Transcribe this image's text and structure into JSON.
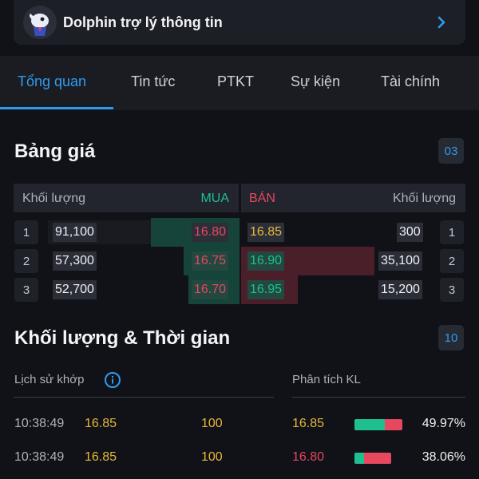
{
  "assistant": {
    "title": "Dolphin trợ lý thông tin"
  },
  "tabs": [
    "Tổng quan",
    "Tin tức",
    "PTKT",
    "Sự kiện",
    "Tài chính"
  ],
  "order_book": {
    "title": "Bảng giá",
    "badge": "03",
    "headers": {
      "left_volume": "Khối lượng",
      "buy": "MUA",
      "sell": "BÁN",
      "right_volume": "Khối lượng"
    },
    "rows": [
      {
        "index_left": "1",
        "buy_volume": "91,100",
        "buy_price": "16.80",
        "sell_price": "16.85",
        "sell_volume": "300",
        "index_right": "1"
      },
      {
        "index_left": "2",
        "buy_volume": "57,300",
        "buy_price": "16.75",
        "sell_price": "16.90",
        "sell_volume": "35,100",
        "index_right": "2"
      },
      {
        "index_left": "3",
        "buy_volume": "52,700",
        "buy_price": "16.70",
        "sell_price": "16.95",
        "sell_volume": "15,200",
        "index_right": "3"
      }
    ]
  },
  "time_sales": {
    "title": "Khối lượng & Thời gian",
    "badge": "10",
    "history_label": "Lịch sử khớp",
    "analysis_label": "Phân tích KL",
    "trades": [
      {
        "time": "10:38:49",
        "price": "16.85",
        "volume": "100"
      },
      {
        "time": "10:38:49",
        "price": "16.85",
        "volume": "100"
      }
    ],
    "analysis": [
      {
        "price": "16.85",
        "percent": "49.97%",
        "buy_share": 0.64
      },
      {
        "price": "16.80",
        "percent": "38.06%",
        "buy_share": 0.26
      }
    ]
  },
  "colors": {
    "accent": "#2f9bf0",
    "buy": "#1fbf8f",
    "sell": "#e5485f",
    "ref": "#e8b83a"
  }
}
